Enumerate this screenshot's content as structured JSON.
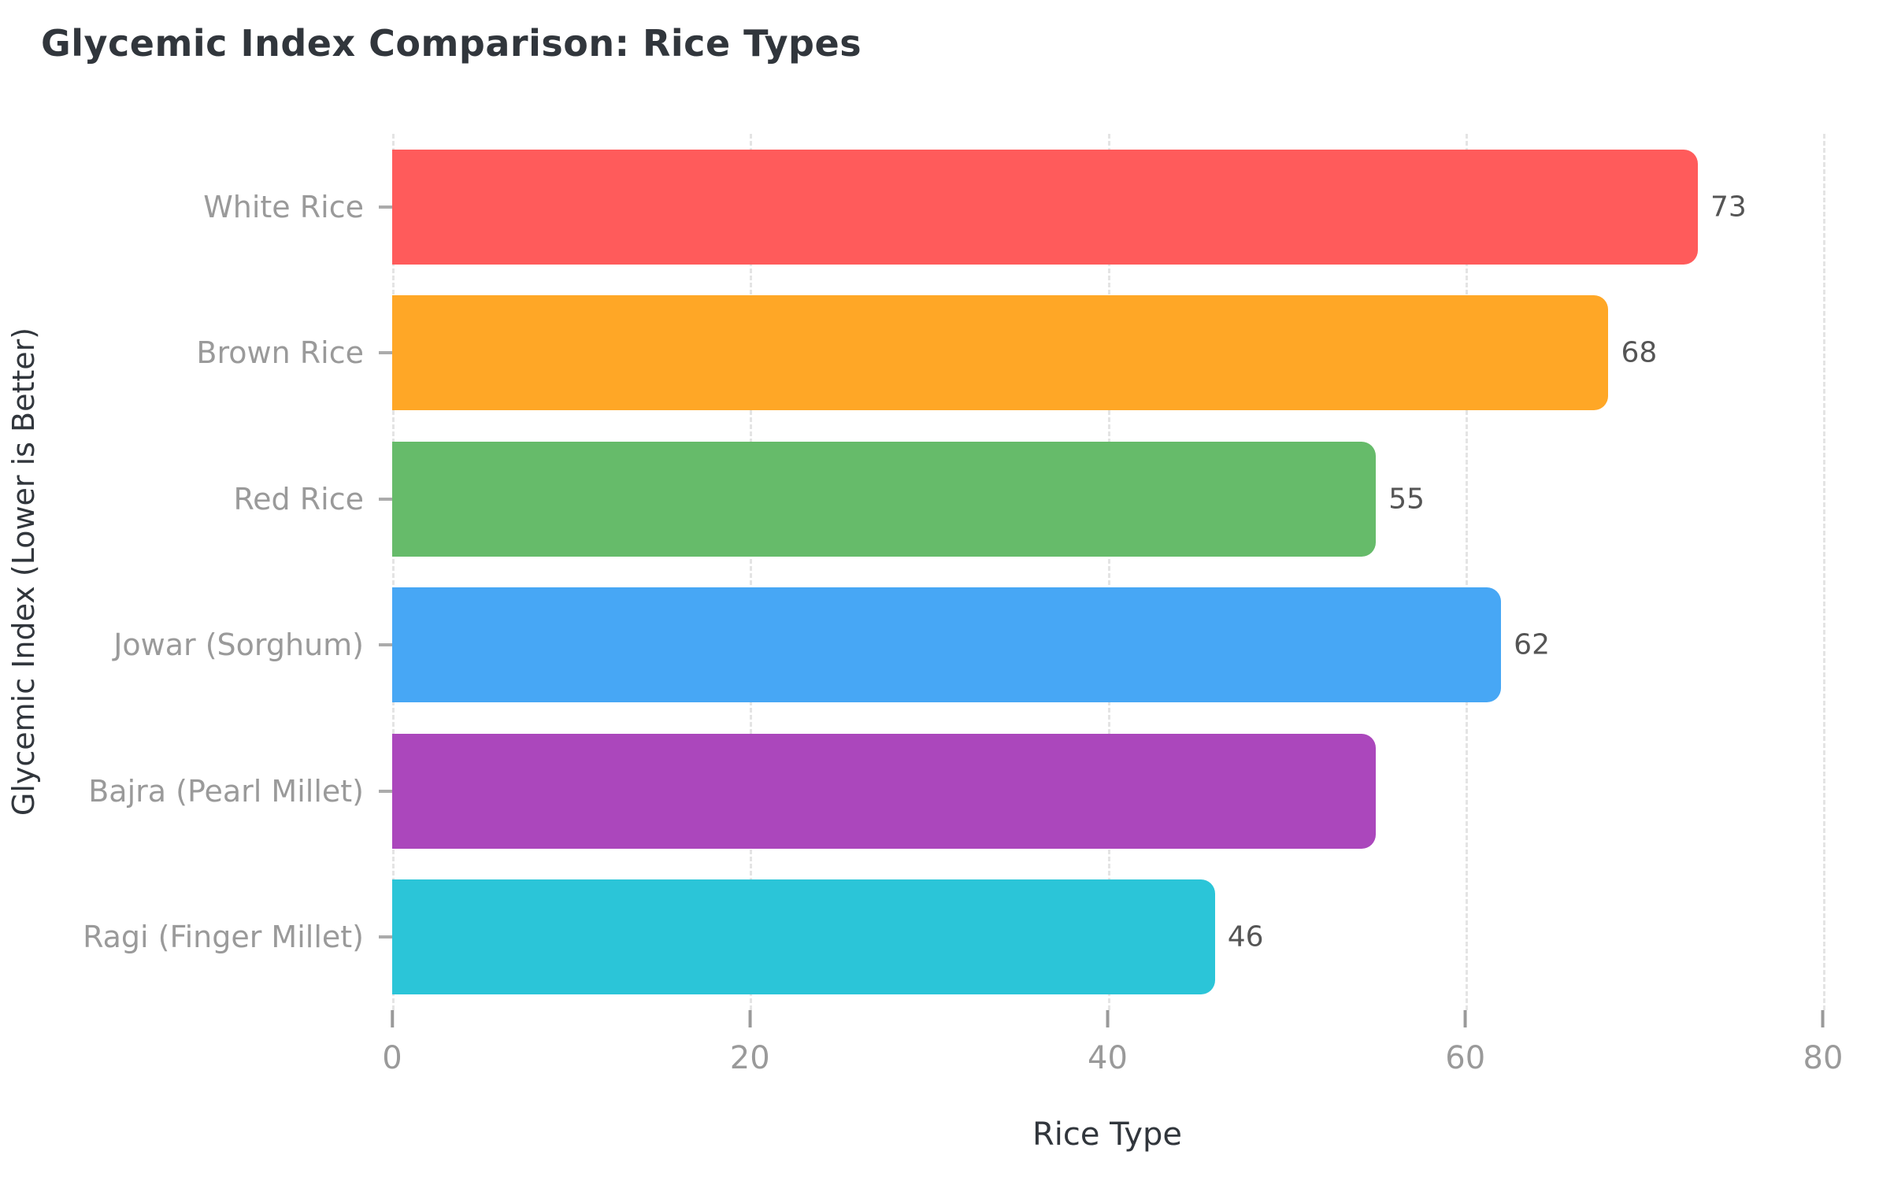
{
  "chart_data": {
    "type": "bar",
    "orientation": "horizontal",
    "title": "Glycemic Index Comparison: Rice Types",
    "xlabel": "Rice Type",
    "ylabel": "Glycemic Index (Lower is Better)",
    "xlim": [
      0,
      80
    ],
    "x_ticks": [
      "0",
      "20",
      "40",
      "60",
      "80"
    ],
    "grid": "vertical-dashed",
    "legend": "none",
    "categories": [
      "White Rice",
      "Brown Rice",
      "Red Rice",
      "Jowar (Sorghum)",
      "Bajra (Pearl Millet)",
      "Ragi (Finger Millet)"
    ],
    "values": [
      73,
      68,
      55,
      62,
      55,
      46
    ],
    "value_labels": [
      "73",
      "68",
      "55",
      "62",
      "",
      "46"
    ],
    "bar_colors": [
      "#ff5b5b",
      "#ffa726",
      "#66bb6a",
      "#47a7f5",
      "#ab47bc",
      "#2bc5d8"
    ],
    "colors": {
      "background": "#ffffff",
      "title_text": "#31363c",
      "axis_title_text": "#31363c",
      "tick_label_text": "#9a9a9a",
      "value_label_text": "#555555",
      "gridline": "#e4e4e4",
      "tick_mark": "#9a9a9a"
    }
  }
}
